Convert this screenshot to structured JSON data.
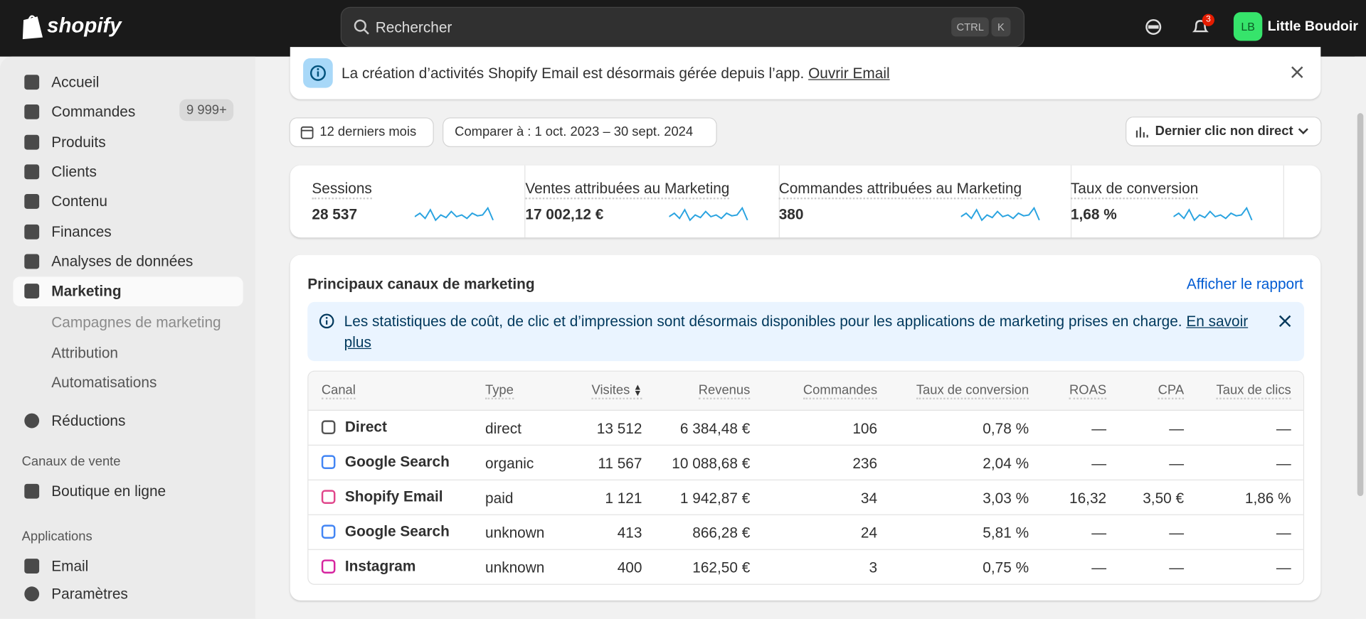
{
  "header": {
    "logo": "shopify",
    "search": "Rechercher",
    "shortcut": [
      "CTRL",
      "K"
    ],
    "notifications": "3",
    "avatar": "LB",
    "store": "Little Boudoir"
  },
  "sidebar": {
    "items": [
      {
        "label": "Accueil"
      },
      {
        "label": "Commandes",
        "badge": "9 999+"
      },
      {
        "label": "Produits"
      },
      {
        "label": "Clients"
      },
      {
        "label": "Contenu"
      },
      {
        "label": "Finances"
      },
      {
        "label": "Analyses de données"
      },
      {
        "label": "Marketing"
      }
    ],
    "marketing_sub": [
      "Campagnes de marketing",
      "Attribution",
      "Automatisations"
    ],
    "discounts": "Réductions",
    "sales_channels": "Canaux de vente",
    "online_store": "Boutique en ligne",
    "apps": "Applications",
    "email": "Email",
    "settings": "Paramètres"
  },
  "banner": {
    "text": "La création d’activités Shopify Email est désormais gérée depuis l’app.",
    "link": "Ouvrir Email"
  },
  "filters": {
    "period": "12 derniers mois",
    "compare": "Comparer à : 1 oct. 2023 – 30 sept. 2024",
    "attribution": "Dernier clic non direct"
  },
  "metrics": [
    {
      "label": "Sessions",
      "value": "28 537"
    },
    {
      "label": "Ventes attribuées au Marketing",
      "value": "17 002,12 €"
    },
    {
      "label": "Commandes attribuées au Marketing",
      "value": "380"
    },
    {
      "label": "Taux de conversion",
      "value": "1,68 %"
    }
  ],
  "card": {
    "title": "Principaux canaux de marketing",
    "link": "Afficher le rapport",
    "notice": "Les statistiques de coût, de clic et d’impression sont désormais disponibles pour les applications de marketing prises en charge.",
    "notice_link": "En savoir plus"
  },
  "table": {
    "columns": [
      "Canal",
      "Type",
      "Visites",
      "Revenus",
      "Commandes",
      "Taux de conversion",
      "ROAS",
      "CPA",
      "Taux de clics"
    ],
    "rows": [
      [
        "Direct",
        "direct",
        "13 512",
        "6 384,48 €",
        "106",
        "0,78 %",
        "—",
        "—",
        "—"
      ],
      [
        "Google Search",
        "organic",
        "11 567",
        "10 088,68 €",
        "236",
        "2,04 %",
        "—",
        "—",
        "—"
      ],
      [
        "Shopify Email",
        "paid",
        "1 121",
        "1 942,87 €",
        "34",
        "3,03 %",
        "16,32",
        "3,50 €",
        "1,86 %"
      ],
      [
        "Google Search",
        "unknown",
        "413",
        "866,28 €",
        "24",
        "5,81 %",
        "—",
        "—",
        "—"
      ],
      [
        "Instagram",
        "unknown",
        "400",
        "162,50 €",
        "3",
        "0,75 %",
        "—",
        "—",
        "—"
      ]
    ]
  }
}
